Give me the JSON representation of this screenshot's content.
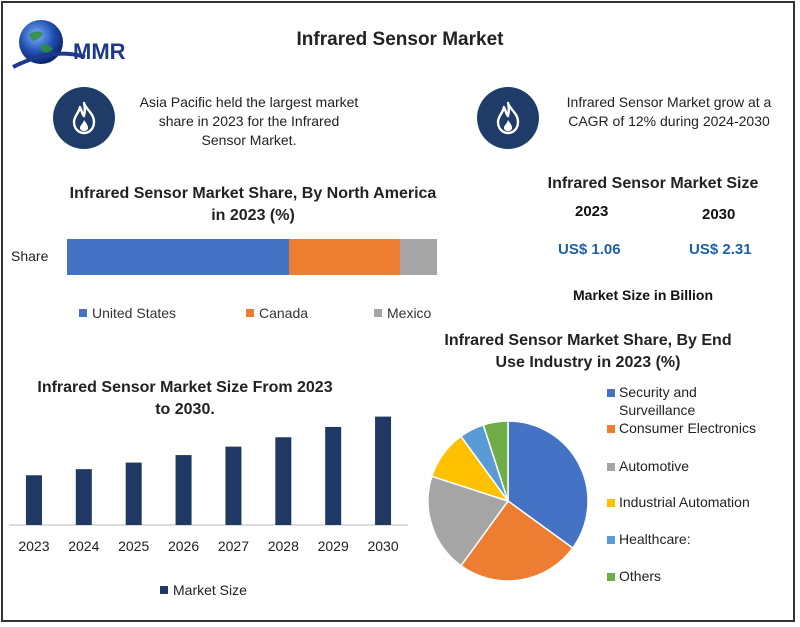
{
  "header": {
    "logo_text": "MMR",
    "title": "Infrared Sensor Market"
  },
  "callouts": [
    {
      "icon": "flame-icon",
      "text_lines": [
        "Asia Pacific held the largest market",
        "share in 2023 for the Infrared",
        "Sensor Market."
      ]
    },
    {
      "icon": "flame-icon",
      "text_lines": [
        "Infrared Sensor Market grow at a",
        "CAGR of 12% during 2024-2030"
      ]
    }
  ],
  "market_size": {
    "title": "Infrared Sensor Market Size",
    "years": [
      "2023",
      "2030"
    ],
    "values": [
      "US$ 1.06",
      "US$ 2.31"
    ],
    "unit_note": "Market Size in Billion"
  },
  "colors": {
    "blue": "#4472c4",
    "orange": "#ed7d31",
    "gray": "#a5a5a5",
    "yellow": "#ffc000",
    "lightblue": "#5b9bd5",
    "green": "#70ad47",
    "navy": "#1f3864",
    "icon_bg": "#1f3c68"
  },
  "chart_data": [
    {
      "type": "bar",
      "orientation": "horizontal-stacked",
      "title_lines": [
        "Infrared Sensor Market Share, By North America",
        "in 2023 (%)"
      ],
      "categories": [
        "Share"
      ],
      "series": [
        {
          "name": "United States",
          "values": [
            60
          ],
          "color": "#4472c4"
        },
        {
          "name": "Canada",
          "values": [
            30
          ],
          "color": "#ed7d31"
        },
        {
          "name": "Mexico",
          "values": [
            10
          ],
          "color": "#a5a5a5"
        }
      ],
      "xlim": [
        0,
        100
      ],
      "legend": "bottom",
      "grid": false
    },
    {
      "type": "bar",
      "title_lines": [
        "Infrared Sensor Market Size From 2023",
        "to 2030."
      ],
      "categories": [
        "2023",
        "2024",
        "2025",
        "2026",
        "2027",
        "2028",
        "2029",
        "2030"
      ],
      "series": [
        {
          "name": "Market Size",
          "values": [
            1.06,
            1.19,
            1.33,
            1.49,
            1.67,
            1.87,
            2.09,
            2.31
          ],
          "color": "#1f3864"
        }
      ],
      "ylim": [
        0,
        2.6
      ],
      "legend": "bottom",
      "grid": false
    },
    {
      "type": "pie",
      "title_lines": [
        "Infrared Sensor Market Share, By End",
        "Use Industry in 2023 (%)"
      ],
      "slices": [
        {
          "label": "Security and Surveillance",
          "label_lines": [
            "Security and",
            "Surveillance"
          ],
          "value": 35,
          "color": "#4472c4"
        },
        {
          "label": "Consumer Electronics",
          "label_lines": [
            "Consumer Electronics"
          ],
          "value": 25,
          "color": "#ed7d31"
        },
        {
          "label": "Automotive",
          "label_lines": [
            "Automotive"
          ],
          "value": 20,
          "color": "#a5a5a5"
        },
        {
          "label": "Industrial Automation",
          "label_lines": [
            "Industrial Automation"
          ],
          "value": 10,
          "color": "#ffc000"
        },
        {
          "label": "Healthcare:",
          "label_lines": [
            "Healthcare:"
          ],
          "value": 5,
          "color": "#5b9bd5"
        },
        {
          "label": "Others",
          "label_lines": [
            "Others"
          ],
          "value": 5,
          "color": "#70ad47"
        }
      ],
      "legend": "right"
    }
  ]
}
